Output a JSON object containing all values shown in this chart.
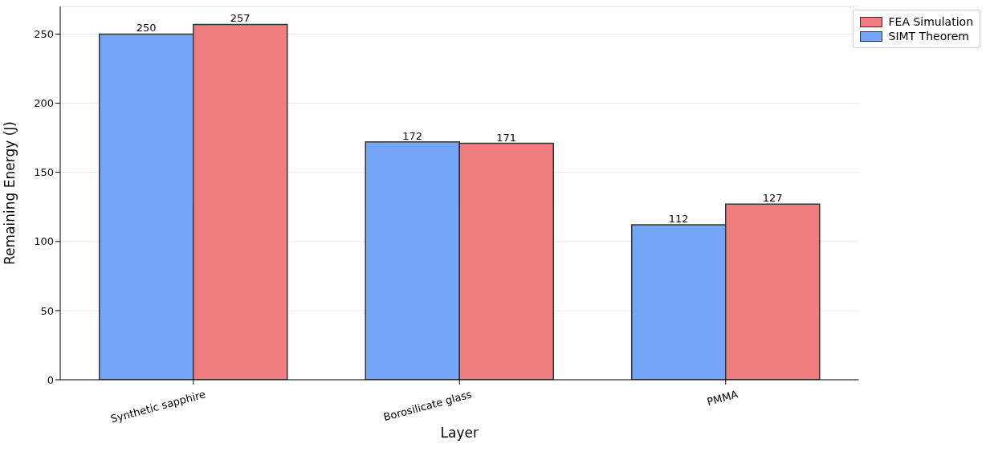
{
  "chart_data": {
    "type": "bar",
    "xlabel": "Layer",
    "ylabel": "Remaining Energy (J)",
    "categories": [
      "Synthetic sapphire",
      "Borosilicate glass",
      "PMMA"
    ],
    "series": [
      {
        "name": "SIMT Theorem",
        "color": "#74a5f7",
        "values": [
          250,
          172,
          112
        ]
      },
      {
        "name": "FEA Simulation",
        "color": "#f07d7d",
        "values": [
          257,
          171,
          127
        ]
      }
    ],
    "ylim": [
      0,
      270
    ],
    "yticks": [
      0,
      50,
      100,
      150,
      200,
      250
    ],
    "grid": "y",
    "legend": "top right",
    "data_labels": true
  }
}
